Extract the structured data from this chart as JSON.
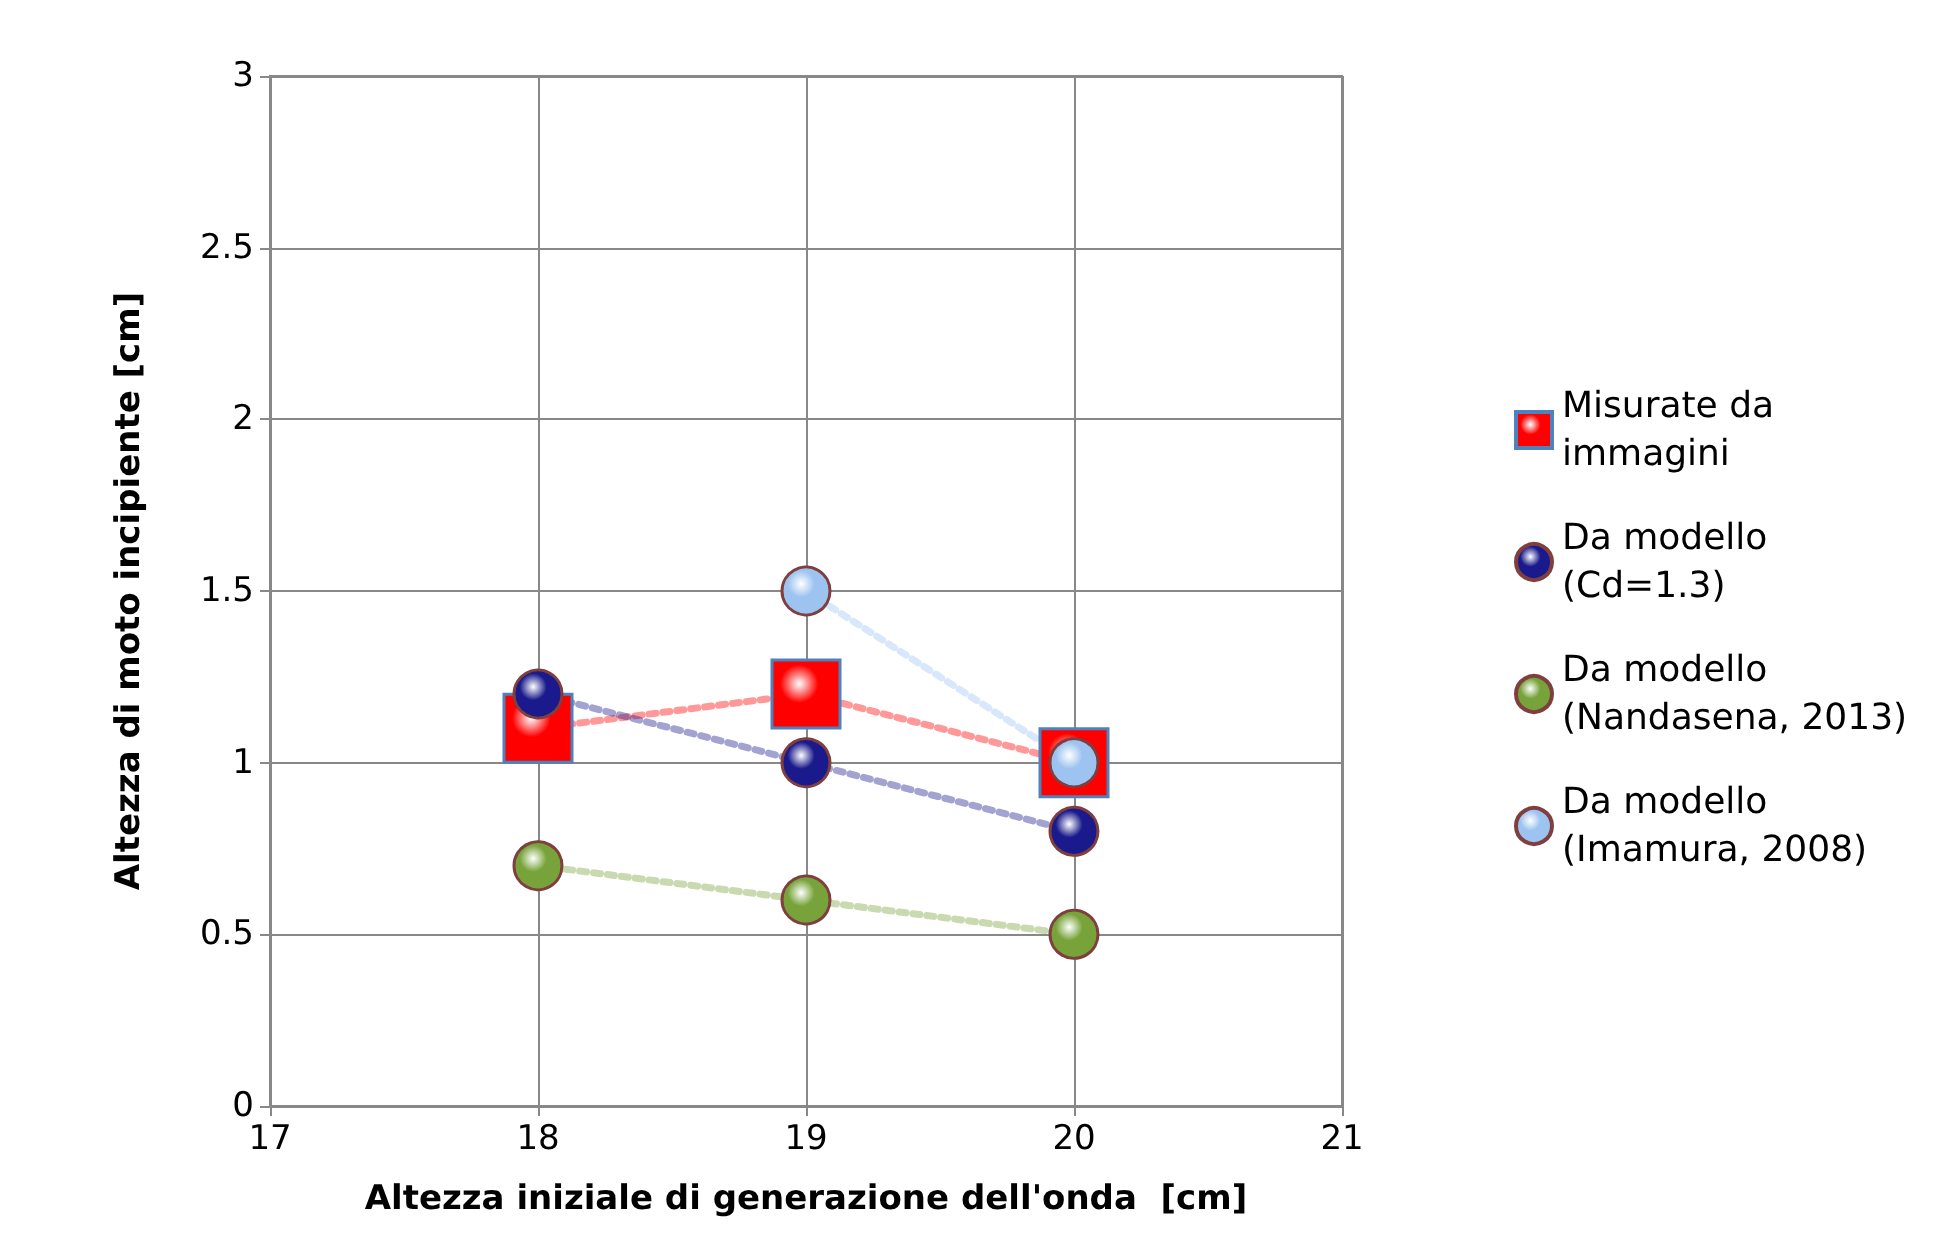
{
  "chart_data": {
    "type": "line",
    "xlabel": "Altezza iniziale di generazione dell'onda  [cm]",
    "ylabel": "Altezza di moto incipiente [cm]",
    "x": [
      18,
      19,
      20
    ],
    "xlim": [
      17,
      21
    ],
    "xticks": [
      17,
      18,
      19,
      20,
      21
    ],
    "ylim": [
      0,
      3
    ],
    "yticks": [
      0,
      0.5,
      1,
      1.5,
      2,
      2.5,
      3
    ],
    "grid": true,
    "legend": "right",
    "line_style": "dotted",
    "series": [
      {
        "name": "Misurate da immagini",
        "color": "#ff0000",
        "marker": "square",
        "values": [
          1.1,
          1.2,
          1.0
        ]
      },
      {
        "name": "Da modello (Cd=1.3)",
        "color": "#1a1a8c",
        "marker": "circle",
        "values": [
          1.2,
          1.0,
          0.8
        ]
      },
      {
        "name": "Da modello (Nandasena, 2013)",
        "color": "#77a33a",
        "marker": "circle",
        "values": [
          0.7,
          0.6,
          0.5
        ]
      },
      {
        "name": "Da modello (Imamura, 2008)",
        "color": "#9dc3f0",
        "marker": "circle",
        "values": [
          null,
          1.5,
          1.0
        ]
      }
    ]
  }
}
